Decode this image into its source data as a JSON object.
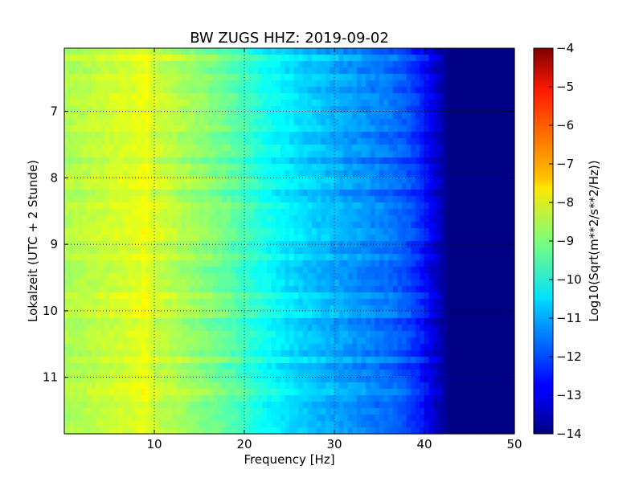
{
  "chart_data": {
    "type": "heatmap",
    "title": "BW ZUGS HHZ: 2019-09-02",
    "xlabel": "Frequency [Hz]",
    "ylabel": "Lokalzeit (UTC + 2 Stunde)",
    "x_range": [
      0,
      50
    ],
    "y_range": [
      6.05,
      11.85
    ],
    "y_inverted": true,
    "x_ticks": [
      10,
      20,
      30,
      40,
      50
    ],
    "y_ticks": [
      7,
      8,
      9,
      10,
      11
    ],
    "grid": true,
    "colormap": "jet",
    "colorbar": {
      "label": "Log10(Sqrt(m**2/s**2/Hz))",
      "range": [
        -14,
        -4
      ],
      "ticks": [
        -14,
        -13,
        -12,
        -11,
        -10,
        -9,
        -8,
        -7,
        -6,
        -5,
        -4
      ]
    },
    "spectrum_profile": {
      "frequency_hz": [
        0,
        2,
        5,
        8,
        9,
        10,
        12,
        15,
        18,
        20,
        22,
        24,
        26,
        28,
        30,
        32,
        34,
        36,
        38,
        40,
        41,
        42,
        43,
        45,
        50
      ],
      "log10_amplitude": [
        -8.6,
        -8.5,
        -8.3,
        -8.1,
        -7.9,
        -8.3,
        -8.5,
        -8.9,
        -9.3,
        -9.7,
        -10.1,
        -10.4,
        -10.7,
        -10.9,
        -11.1,
        -11.3,
        -11.5,
        -11.7,
        -12.0,
        -12.6,
        -13.2,
        -13.6,
        -13.95,
        -13.95,
        -13.95
      ]
    }
  }
}
